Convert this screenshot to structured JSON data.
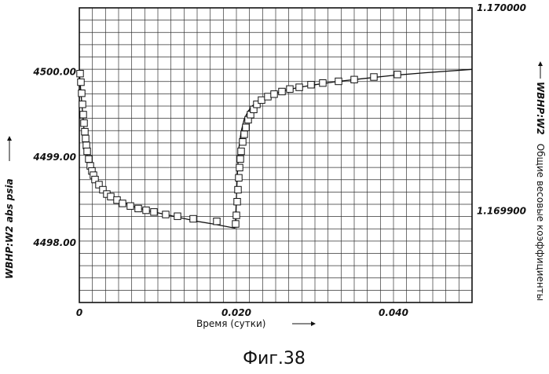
{
  "chart_data": {
    "type": "line",
    "caption": "Фиг.38",
    "xlabel": "Время (сутки)",
    "ylabel_left": "WBHP:W2  abs  psia",
    "ylabel_right_bold": "WBHP:W2",
    "ylabel_right_text": "Общие весовые коэффициенты",
    "xlim": [
      0,
      0.05
    ],
    "ylim_left": [
      4497.3,
      4500.75
    ],
    "ylim_right": [
      1.169855,
      1.17
    ],
    "grid": true,
    "x_ticks": [
      {
        "value": 0,
        "label": "0"
      },
      {
        "value": 0.02,
        "label": "0.020"
      },
      {
        "value": 0.04,
        "label": "0.040"
      }
    ],
    "y_ticks_left": [
      {
        "value": 4500,
        "label": "4500.00"
      },
      {
        "value": 4499,
        "label": "4499.00"
      },
      {
        "value": 4498,
        "label": "4498.00"
      }
    ],
    "y_ticks_right": [
      {
        "value": 1.17,
        "label": "1.170000"
      },
      {
        "value": 1.1699,
        "label": "1.169900"
      }
    ],
    "series": [
      {
        "style": "line",
        "x": [
          0,
          0.0003,
          0.0006,
          0.001,
          0.0015,
          0.002,
          0.003,
          0.004,
          0.005,
          0.007,
          0.009,
          0.011,
          0.013,
          0.015,
          0.017,
          0.0198,
          0.0199,
          0.0201,
          0.0203,
          0.0206,
          0.021,
          0.0215,
          0.022,
          0.023,
          0.024,
          0.026,
          0.028,
          0.03,
          0.033,
          0.036,
          0.04,
          0.044,
          0.05
        ],
        "y": [
          4500.0,
          4499.65,
          4499.32,
          4499.03,
          4498.85,
          4498.74,
          4498.62,
          4498.55,
          4498.5,
          4498.42,
          4498.37,
          4498.33,
          4498.29,
          4498.25,
          4498.22,
          4498.17,
          4498.3,
          4498.75,
          4499.1,
          4499.3,
          4499.45,
          4499.54,
          4499.6,
          4499.67,
          4499.72,
          4499.78,
          4499.82,
          4499.85,
          4499.89,
          4499.92,
          4499.96,
          4499.99,
          4500.03
        ]
      },
      {
        "style": "markers",
        "marker": "square",
        "x": [
          0.0001,
          0.0002,
          0.0003,
          0.0004,
          0.0005,
          0.0006,
          0.0007,
          0.0008,
          0.0009,
          0.001,
          0.0012,
          0.0014,
          0.0016,
          0.0018,
          0.002,
          0.0025,
          0.003,
          0.0035,
          0.004,
          0.0048,
          0.0055,
          0.0065,
          0.0075,
          0.0085,
          0.0095,
          0.011,
          0.0125,
          0.0145,
          0.0175,
          0.0199,
          0.02,
          0.0201,
          0.0202,
          0.0203,
          0.0204,
          0.0205,
          0.0206,
          0.0208,
          0.021,
          0.0212,
          0.0215,
          0.0218,
          0.0222,
          0.0226,
          0.0232,
          0.024,
          0.0248,
          0.0258,
          0.0268,
          0.028,
          0.0295,
          0.031,
          0.033,
          0.035,
          0.0375,
          0.0405
        ],
        "y": [
          4499.98,
          4499.88,
          4499.75,
          4499.62,
          4499.5,
          4499.4,
          4499.3,
          4499.22,
          4499.14,
          4499.07,
          4498.98,
          4498.9,
          4498.84,
          4498.79,
          4498.74,
          4498.68,
          4498.62,
          4498.57,
          4498.54,
          4498.5,
          4498.46,
          4498.43,
          4498.4,
          4498.38,
          4498.36,
          4498.33,
          4498.31,
          4498.28,
          4498.25,
          4498.22,
          4498.32,
          4498.48,
          4498.62,
          4498.76,
          4498.88,
          4498.98,
          4499.07,
          4499.18,
          4499.27,
          4499.35,
          4499.44,
          4499.5,
          4499.56,
          4499.62,
          4499.67,
          4499.71,
          4499.74,
          4499.77,
          4499.8,
          4499.82,
          4499.85,
          4499.87,
          4499.89,
          4499.91,
          4499.94,
          4499.97
        ]
      }
    ]
  }
}
